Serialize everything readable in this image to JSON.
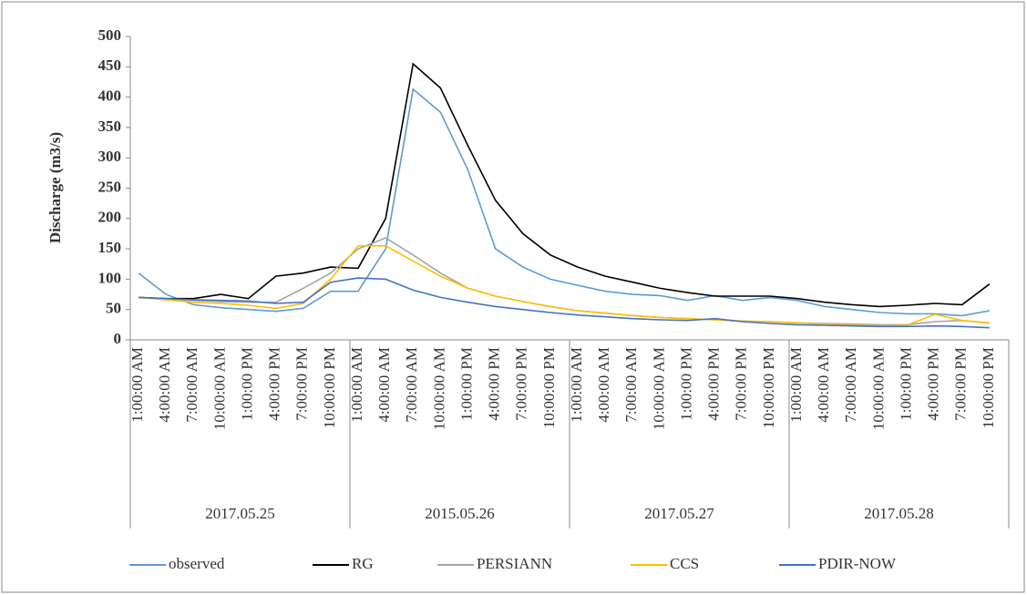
{
  "chart_data": {
    "type": "line",
    "y_label": "Discharge (m3/s)",
    "categories": [
      "1:00:00 AM",
      "4:00:00 AM",
      "7:00:00 AM",
      "10:00:00 AM",
      "1:00:00 PM",
      "4:00:00 PM",
      "7:00:00 PM",
      "10:00:00 PM",
      "1:00:00 AM",
      "4:00:00 AM",
      "7:00:00 AM",
      "10:00:00 AM",
      "1:00:00 PM",
      "4:00:00 PM",
      "7:00:00 PM",
      "10:00:00 PM",
      "1:00:00 AM",
      "4:00:00 AM",
      "7:00:00 AM",
      "10:00:00 AM",
      "1:00:00 PM",
      "4:00:00 PM",
      "7:00:00 PM",
      "10:00:00 PM",
      "1:00:00 AM",
      "4:00:00 AM",
      "7:00:00 AM",
      "10:00:00 AM",
      "1:00:00 PM",
      "4:00:00 PM",
      "7:00:00 PM",
      "10:00:00 PM"
    ],
    "groups": [
      {
        "label": "2017.05.25",
        "count": 8
      },
      {
        "label": "2015.05.26",
        "count": 8
      },
      {
        "label": "2017.05.27",
        "count": 8
      },
      {
        "label": "2017.05.28",
        "count": 8
      }
    ],
    "series": [
      {
        "name": "observed",
        "color": "#5b9bd5",
        "values": [
          110,
          75,
          58,
          53,
          50,
          47,
          52,
          80,
          80,
          150,
          413,
          375,
          280,
          150,
          120,
          100,
          90,
          80,
          75,
          73,
          65,
          73,
          65,
          70,
          65,
          55,
          50,
          45,
          43,
          43,
          40,
          48
        ]
      },
      {
        "name": "RG",
        "color": "#000000",
        "values": [
          70,
          68,
          68,
          75,
          68,
          105,
          110,
          120,
          118,
          200,
          455,
          415,
          320,
          230,
          175,
          140,
          120,
          105,
          95,
          85,
          78,
          72,
          72,
          72,
          68,
          62,
          58,
          55,
          57,
          60,
          58,
          92
        ]
      },
      {
        "name": "PERSIANN",
        "color": "#a5a5a5",
        "values": [
          70,
          67,
          65,
          63,
          62,
          62,
          85,
          110,
          150,
          168,
          140,
          110,
          85,
          72,
          63,
          55,
          48,
          44,
          40,
          37,
          35,
          33,
          31,
          30,
          28,
          27,
          26,
          25,
          25,
          30,
          32,
          28
        ]
      },
      {
        "name": "CCS",
        "color": "#ffc000",
        "values": [
          70,
          66,
          62,
          60,
          57,
          52,
          60,
          100,
          155,
          155,
          130,
          105,
          85,
          72,
          63,
          55,
          48,
          44,
          40,
          37,
          35,
          33,
          31,
          30,
          28,
          26,
          24,
          23,
          24,
          42,
          32,
          28
        ]
      },
      {
        "name": "PDIR-NOW",
        "color": "#4472c4",
        "values": [
          70,
          68,
          66,
          65,
          64,
          60,
          62,
          95,
          102,
          100,
          82,
          70,
          62,
          55,
          50,
          45,
          41,
          38,
          35,
          33,
          32,
          35,
          30,
          27,
          25,
          24,
          23,
          22,
          22,
          23,
          22,
          20
        ]
      }
    ],
    "ylim": [
      0,
      500
    ],
    "yticks": [
      0,
      50,
      100,
      150,
      200,
      250,
      300,
      350,
      400,
      450,
      500
    ],
    "grid": false,
    "legend": "bottom"
  }
}
